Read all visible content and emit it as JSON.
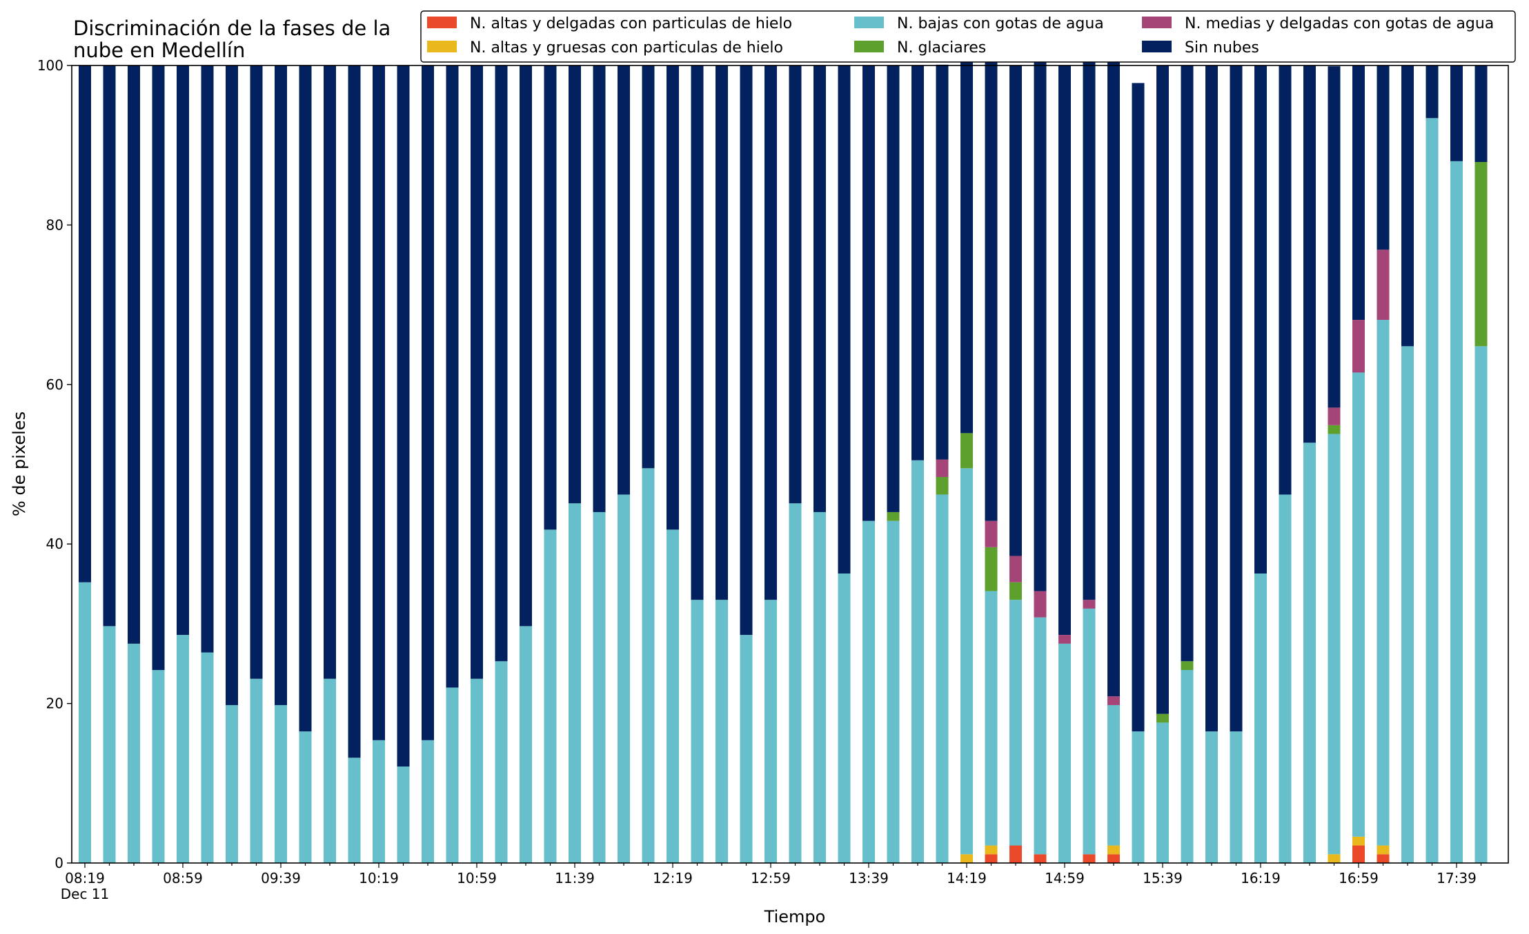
{
  "chart_data": {
    "type": "bar",
    "stacked": true,
    "title_line1": "Discriminación de la fases de la",
    "title_line2": "nube en Medellín",
    "xlabel": "Tiempo",
    "ylabel": "% de pixeles",
    "ylim": [
      0,
      100
    ],
    "yticks": [
      0,
      20,
      40,
      60,
      80,
      100
    ],
    "grid": false,
    "legend_position": "top-right",
    "x_tick_labels": [
      "08:19",
      "08:59",
      "09:39",
      "10:19",
      "10:59",
      "11:39",
      "12:19",
      "12:59",
      "13:39",
      "14:19",
      "14:59",
      "15:39",
      "16:19",
      "16:59",
      "17:39"
    ],
    "x_date_label": "Dec 11",
    "categories": [
      "08:19",
      "08:29",
      "08:39",
      "08:49",
      "08:59",
      "09:09",
      "09:19",
      "09:29",
      "09:39",
      "09:49",
      "09:59",
      "10:09",
      "10:19",
      "10:29",
      "10:39",
      "10:49",
      "10:59",
      "11:09",
      "11:19",
      "11:29",
      "11:39",
      "11:49",
      "11:59",
      "12:09",
      "12:19",
      "12:29",
      "12:39",
      "12:49",
      "12:59",
      "13:09",
      "13:19",
      "13:29",
      "13:39",
      "13:49",
      "13:59",
      "14:09",
      "14:19",
      "14:29",
      "14:39",
      "14:49",
      "14:59",
      "15:09",
      "15:19",
      "15:29",
      "15:39",
      "15:49",
      "15:59",
      "16:09",
      "16:19",
      "16:29",
      "16:39",
      "16:49",
      "16:59",
      "17:09",
      "17:19",
      "17:29",
      "17:39",
      "17:49"
    ],
    "series": [
      {
        "name": "N. altas y delgadas con particulas de hielo",
        "color": "#ea4a2a",
        "values": [
          0,
          0,
          0,
          0,
          0,
          0,
          0,
          0,
          0,
          0,
          0,
          0,
          0,
          0,
          0,
          0,
          0,
          0,
          0,
          0,
          0,
          0,
          0,
          0,
          0,
          0,
          0,
          0,
          0,
          0,
          0,
          0,
          0,
          0,
          0,
          0,
          0,
          1.1,
          2.2,
          1.1,
          0,
          1.1,
          1.1,
          0,
          0,
          0,
          0,
          0,
          0,
          0,
          0,
          0,
          2.2,
          1.1,
          0,
          0,
          0,
          0
        ]
      },
      {
        "name": "N. altas y gruesas con particulas de hielo",
        "color": "#e8b81c",
        "values": [
          0,
          0,
          0,
          0,
          0,
          0,
          0,
          0,
          0,
          0,
          0,
          0,
          0,
          0,
          0,
          0,
          0,
          0,
          0,
          0,
          0,
          0,
          0,
          0,
          0,
          0,
          0,
          0,
          0,
          0,
          0,
          0,
          0,
          0,
          0,
          0,
          1.1,
          1.1,
          0,
          0,
          0,
          0,
          1.1,
          0,
          0,
          0,
          0,
          0,
          0,
          0,
          0,
          1.1,
          1.1,
          1.1,
          0,
          0,
          0,
          0
        ]
      },
      {
        "name": "N. bajas con gotas de agua",
        "color": "#66bfca",
        "values": [
          35.2,
          29.7,
          27.5,
          24.2,
          28.6,
          26.4,
          19.8,
          23.1,
          19.8,
          16.5,
          23.1,
          13.2,
          15.4,
          12.1,
          15.4,
          22.0,
          23.1,
          25.3,
          29.7,
          41.8,
          45.1,
          44.0,
          46.2,
          49.5,
          41.8,
          33.0,
          33.0,
          28.6,
          33.0,
          45.1,
          44.0,
          36.3,
          42.9,
          42.9,
          50.5,
          46.2,
          48.4,
          31.9,
          30.8,
          29.7,
          27.5,
          30.8,
          17.6,
          16.5,
          17.6,
          24.2,
          16.5,
          16.5,
          36.3,
          46.2,
          52.7,
          52.7,
          58.2,
          65.9,
          64.8,
          93.4,
          88.0,
          64.8
        ]
      },
      {
        "name": "N. glaciares",
        "color": "#5ea02e",
        "values": [
          0,
          0,
          0,
          0,
          0,
          0,
          0,
          0,
          0,
          0,
          0,
          0,
          0,
          0,
          0,
          0,
          0,
          0,
          0,
          0,
          0,
          0,
          0,
          0,
          0,
          0,
          0,
          0,
          0,
          0,
          0,
          0,
          0,
          1.1,
          0,
          2.2,
          4.4,
          5.5,
          2.2,
          0,
          0,
          0,
          0,
          0,
          1.1,
          1.1,
          0,
          0,
          0,
          0,
          0,
          1.1,
          0,
          0,
          0,
          0,
          0,
          23.1
        ]
      },
      {
        "name": "N. medias y delgadas con gotas de agua",
        "color": "#a54577",
        "values": [
          0,
          0,
          0,
          0,
          0,
          0,
          0,
          0,
          0,
          0,
          0,
          0,
          0,
          0,
          0,
          0,
          0,
          0,
          0,
          0,
          0,
          0,
          0,
          0,
          0,
          0,
          0,
          0,
          0,
          0,
          0,
          0,
          0,
          0,
          0,
          2.2,
          0,
          3.3,
          3.3,
          3.3,
          1.1,
          1.1,
          1.1,
          0,
          0,
          0,
          0,
          0,
          0,
          0,
          0,
          2.2,
          6.6,
          8.8,
          0,
          0,
          0,
          0
        ]
      },
      {
        "name": "Sin nubes",
        "color": "#03215f",
        "values": [
          64.8,
          70.3,
          72.5,
          75.8,
          71.4,
          73.6,
          80.2,
          76.9,
          80.2,
          83.5,
          76.9,
          86.8,
          84.6,
          87.9,
          84.6,
          78.0,
          76.9,
          74.7,
          70.3,
          58.2,
          54.9,
          56.0,
          53.8,
          50.5,
          58.2,
          67.0,
          67.0,
          71.4,
          67.0,
          54.9,
          56.0,
          63.7,
          57.1,
          56.0,
          49.5,
          49.5,
          47.2,
          58.2,
          61.5,
          67.0,
          71.4,
          68.1,
          80.2,
          81.3,
          81.3,
          74.7,
          83.5,
          83.5,
          63.7,
          53.8,
          47.3,
          42.8,
          31.9,
          23.1,
          35.2,
          6.6,
          12.0,
          12.1
        ]
      }
    ]
  }
}
